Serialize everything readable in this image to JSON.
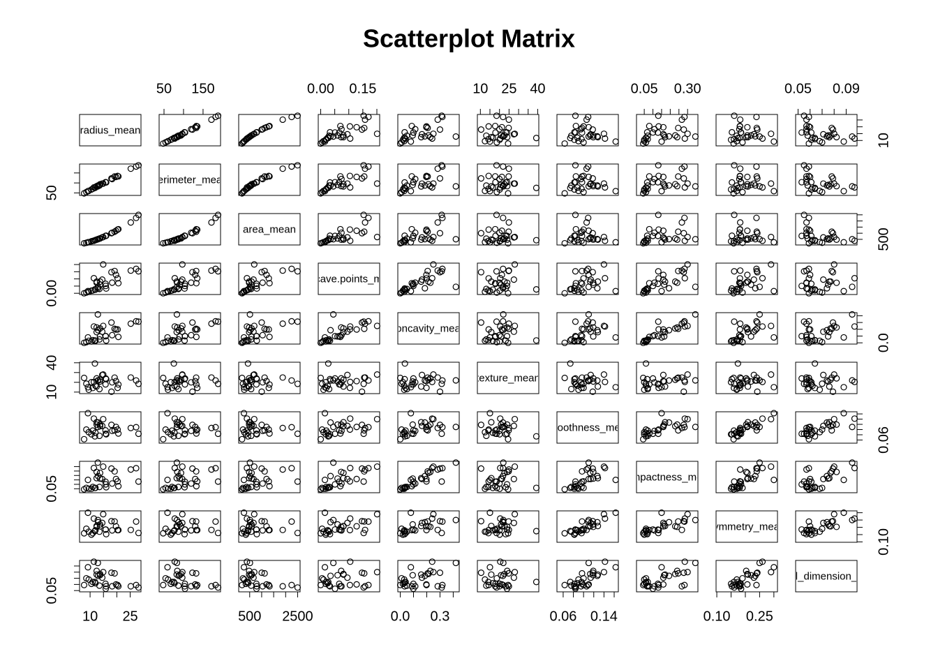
{
  "chart_data": {
    "type": "scatter_matrix",
    "title": "Scatterplot Matrix",
    "point_color": "#000000",
    "variables": [
      {
        "name": "radius_mean",
        "lim": [
          6.98,
          28.11
        ],
        "ticks": [
          10,
          {
            "value": 15,
            "label": null
          },
          {
            "value": 20,
            "label": null
          },
          25
        ],
        "side_ticks": [
          10,
          {
            "value": 15,
            "label": null
          },
          {
            "value": 20,
            "label": null
          },
          {
            "value": 25,
            "label": null
          }
        ],
        "values": [
          17.99,
          20.57,
          19.69,
          11.42,
          20.29,
          12.45,
          18.25,
          13.71,
          13.0,
          12.46,
          16.02,
          15.78,
          19.17,
          15.85,
          13.73,
          14.54,
          9.5,
          11.0,
          8.6,
          12.0,
          10.5,
          13.5,
          7.76,
          27.22,
          28.11,
          25.22,
          11.8,
          9.2,
          12.9,
          14.9
        ]
      },
      {
        "name": "perimeter_mean",
        "lim": [
          43.79,
          188.5
        ],
        "ticks": [
          50,
          {
            "value": 100,
            "label": null
          },
          150
        ],
        "side_ticks": [
          50,
          {
            "value": 100,
            "label": null
          },
          {
            "value": 150,
            "label": null
          }
        ],
        "values": [
          122.8,
          132.9,
          130.0,
          77.58,
          135.1,
          82.57,
          119.6,
          90.2,
          87.5,
          83.97,
          102.7,
          103.6,
          132.4,
          103.7,
          93.6,
          96.73,
          60.3,
          70.5,
          54.1,
          77.0,
          67.4,
          86.9,
          47.9,
          182.1,
          188.5,
          171.5,
          75.2,
          59.0,
          83.0,
          97.0
        ]
      },
      {
        "name": "area_mean",
        "lim": [
          143.5,
          2501
        ],
        "ticks": [
          500,
          {
            "value": 1000,
            "label": null
          },
          {
            "value": 1500,
            "label": null
          },
          {
            "value": 2000,
            "label": null
          },
          2500
        ],
        "side_ticks": [
          500,
          {
            "value": 1000,
            "label": null
          },
          {
            "value": 1500,
            "label": null
          },
          {
            "value": 2000,
            "label": null
          },
          {
            "value": 2500,
            "label": null
          }
        ],
        "values": [
          1001,
          1326,
          1203,
          386,
          1297,
          477,
          1040,
          578,
          520,
          476,
          797,
          781,
          1123,
          783,
          578,
          659,
          273,
          373,
          221,
          440,
          340,
          560,
          181,
          2250,
          2499,
          1878,
          430,
          260,
          510,
          690
        ]
      },
      {
        "name": "concave.points_mean",
        "lim": [
          0,
          0.2012
        ],
        "ticks": [
          {
            "value": 0,
            "label": "0.00"
          },
          {
            "value": 0.05,
            "label": null
          },
          {
            "value": 0.1,
            "label": null
          },
          {
            "value": 0.15,
            "label": "0.15"
          },
          {
            "value": 0.2,
            "label": null
          }
        ],
        "side_ticks": [
          {
            "value": 0,
            "label": "0.00"
          },
          {
            "value": 0.05,
            "label": null
          },
          {
            "value": 0.1,
            "label": null
          },
          {
            "value": 0.15,
            "label": null
          },
          {
            "value": 0.2,
            "label": null
          }
        ],
        "values": [
          0.147,
          0.07,
          0.128,
          0.105,
          0.104,
          0.081,
          0.074,
          0.06,
          0.035,
          0.073,
          0.033,
          0.066,
          0.155,
          0.051,
          0.081,
          0.095,
          0.01,
          0.02,
          0.005,
          0.025,
          0.018,
          0.03,
          0.0,
          0.17,
          0.153,
          0.158,
          0.027,
          0.015,
          0.045,
          0.201
        ]
      },
      {
        "name": "concavity_mean",
        "lim": [
          0,
          0.4268
        ],
        "ticks": [
          {
            "value": 0,
            "label": "0.0"
          },
          {
            "value": 0.1,
            "label": null
          },
          {
            "value": 0.2,
            "label": null
          },
          0.3,
          {
            "value": 0.4,
            "label": null
          }
        ],
        "side_ticks": [
          {
            "value": 0,
            "label": "0.0"
          },
          {
            "value": 0.1,
            "label": null
          },
          {
            "value": 0.2,
            "label": null
          },
          {
            "value": 0.3,
            "label": null
          },
          {
            "value": 0.4,
            "label": null
          }
        ],
        "values": [
          0.3,
          0.087,
          0.197,
          0.241,
          0.198,
          0.158,
          0.113,
          0.094,
          0.186,
          0.227,
          0.033,
          0.099,
          0.207,
          0.099,
          0.213,
          0.164,
          0.03,
          0.04,
          0.01,
          0.03,
          0.02,
          0.05,
          0.0,
          0.318,
          0.313,
          0.283,
          0.035,
          0.08,
          0.42,
          0.25
        ]
      },
      {
        "name": "texture_mean",
        "lim": [
          9.71,
          39.28
        ],
        "ticks": [
          10,
          {
            "value": 15,
            "label": null
          },
          {
            "value": 20,
            "label": null
          },
          25,
          {
            "value": 30,
            "label": null
          },
          {
            "value": 35,
            "label": null
          },
          40
        ],
        "side_ticks": [
          10,
          {
            "value": 20,
            "label": null
          },
          {
            "value": 30,
            "label": null
          },
          40
        ],
        "values": [
          10.38,
          17.77,
          21.25,
          20.38,
          14.34,
          15.7,
          19.98,
          20.83,
          21.82,
          24.04,
          23.24,
          17.89,
          24.8,
          23.95,
          22.61,
          27.54,
          12.4,
          14.2,
          18.6,
          16.5,
          20.1,
          13.1,
          24.5,
          21.87,
          18.47,
          24.91,
          39.28,
          15.0,
          22.0,
          28.0
        ]
      },
      {
        "name": "smoothness_mean",
        "lim": [
          0.0526,
          0.1634
        ],
        "ticks": [
          {
            "value": 0.06,
            "label": "0.06"
          },
          {
            "value": 0.08,
            "label": null
          },
          {
            "value": 0.1,
            "label": null
          },
          {
            "value": 0.12,
            "label": null
          },
          {
            "value": 0.14,
            "label": "0.14"
          },
          {
            "value": 0.16,
            "label": null
          }
        ],
        "side_ticks": [
          {
            "value": 0.06,
            "label": "0.06"
          },
          {
            "value": 0.08,
            "label": null
          },
          {
            "value": 0.1,
            "label": null
          },
          {
            "value": 0.12,
            "label": null
          },
          {
            "value": 0.14,
            "label": null
          },
          {
            "value": 0.16,
            "label": null
          }
        ],
        "values": [
          0.118,
          0.085,
          0.11,
          0.142,
          0.1,
          0.128,
          0.095,
          0.119,
          0.127,
          0.119,
          0.082,
          0.097,
          0.097,
          0.084,
          0.113,
          0.114,
          0.09,
          0.096,
          0.1,
          0.088,
          0.082,
          0.076,
          0.063,
          0.109,
          0.084,
          0.106,
          0.074,
          0.163,
          0.11,
          0.14
        ]
      },
      {
        "name": "compactness_mean",
        "lim": [
          0.0194,
          0.3454
        ],
        "ticks": [
          0.05,
          {
            "value": 0.1,
            "label": null
          },
          {
            "value": 0.15,
            "label": null
          },
          {
            "value": 0.2,
            "label": null
          },
          {
            "value": 0.25,
            "label": null
          },
          {
            "value": 0.3,
            "label": "0.30"
          }
        ],
        "side_ticks": [
          0.05,
          {
            "value": 0.1,
            "label": null
          },
          {
            "value": 0.15,
            "label": null
          },
          {
            "value": 0.2,
            "label": null
          },
          {
            "value": 0.25,
            "label": null
          },
          {
            "value": 0.3,
            "label": null
          }
        ],
        "values": [
          0.278,
          0.079,
          0.16,
          0.284,
          0.133,
          0.17,
          0.109,
          0.165,
          0.193,
          0.24,
          0.067,
          0.129,
          0.246,
          0.1,
          0.229,
          0.16,
          0.05,
          0.07,
          0.06,
          0.06,
          0.05,
          0.07,
          0.044,
          0.282,
          0.131,
          0.267,
          0.06,
          0.15,
          0.345,
          0.3
        ]
      },
      {
        "name": "symmetry_mean",
        "lim": [
          0.106,
          0.304
        ],
        "ticks": [
          {
            "value": 0.1,
            "label": "0.10"
          },
          {
            "value": 0.15,
            "label": null
          },
          {
            "value": 0.2,
            "label": null
          },
          0.25,
          {
            "value": 0.3,
            "label": null
          }
        ],
        "side_ticks": [
          {
            "value": 0.1,
            "label": "0.10"
          },
          {
            "value": 0.15,
            "label": null
          },
          {
            "value": 0.2,
            "label": null
          },
          {
            "value": 0.25,
            "label": null
          },
          {
            "value": 0.3,
            "label": null
          }
        ],
        "values": [
          0.242,
          0.181,
          0.207,
          0.26,
          0.181,
          0.209,
          0.179,
          0.22,
          0.235,
          0.203,
          0.153,
          0.184,
          0.24,
          0.185,
          0.207,
          0.23,
          0.17,
          0.16,
          0.19,
          0.18,
          0.15,
          0.17,
          0.159,
          0.239,
          0.161,
          0.182,
          0.174,
          0.3,
          0.25,
          0.29
        ]
      },
      {
        "name": "fractal_dimension_mean",
        "lim": [
          0.05,
          0.097
        ],
        "ticks": [
          0.05,
          {
            "value": 0.06,
            "label": null
          },
          {
            "value": 0.07,
            "label": null
          },
          {
            "value": 0.08,
            "label": null
          },
          0.09
        ],
        "side_ticks": [
          0.05,
          {
            "value": 0.06,
            "label": null
          },
          {
            "value": 0.07,
            "label": null
          },
          {
            "value": 0.08,
            "label": null
          },
          {
            "value": 0.09,
            "label": null
          }
        ],
        "values": [
          0.079,
          0.057,
          0.06,
          0.097,
          0.059,
          0.076,
          0.057,
          0.075,
          0.074,
          0.082,
          0.057,
          0.061,
          0.078,
          0.053,
          0.077,
          0.071,
          0.068,
          0.064,
          0.07,
          0.062,
          0.061,
          0.058,
          0.059,
          0.059,
          0.055,
          0.057,
          0.064,
          0.088,
          0.095,
          0.08
        ]
      }
    ]
  }
}
